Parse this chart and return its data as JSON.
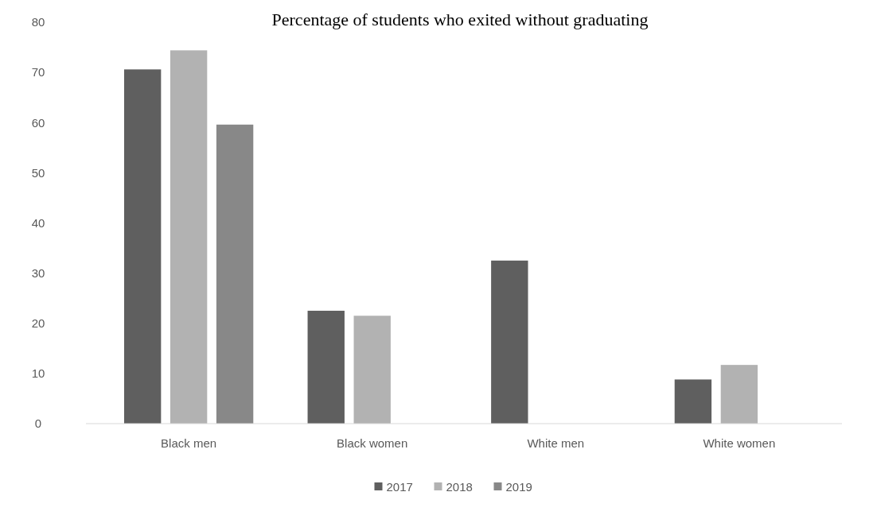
{
  "chart_data": {
    "type": "bar",
    "title": "Percentage of students who exited without graduating",
    "categories": [
      "Black men",
      "Black women",
      "White men",
      "White women"
    ],
    "series": [
      {
        "name": "2017",
        "color": "#5f5f5f",
        "values": [
          70.6,
          22.5,
          32.5,
          8.8
        ]
      },
      {
        "name": "2018",
        "color": "#b2b2b2",
        "values": [
          74.4,
          21.5,
          null,
          11.7
        ]
      },
      {
        "name": "2019",
        "color": "#888888",
        "values": [
          59.6,
          null,
          null,
          null
        ]
      }
    ],
    "ylim": [
      0,
      80
    ],
    "yticks": [
      0,
      10,
      20,
      30,
      40,
      50,
      60,
      70,
      80
    ],
    "grid": false,
    "legend": "bottom"
  }
}
